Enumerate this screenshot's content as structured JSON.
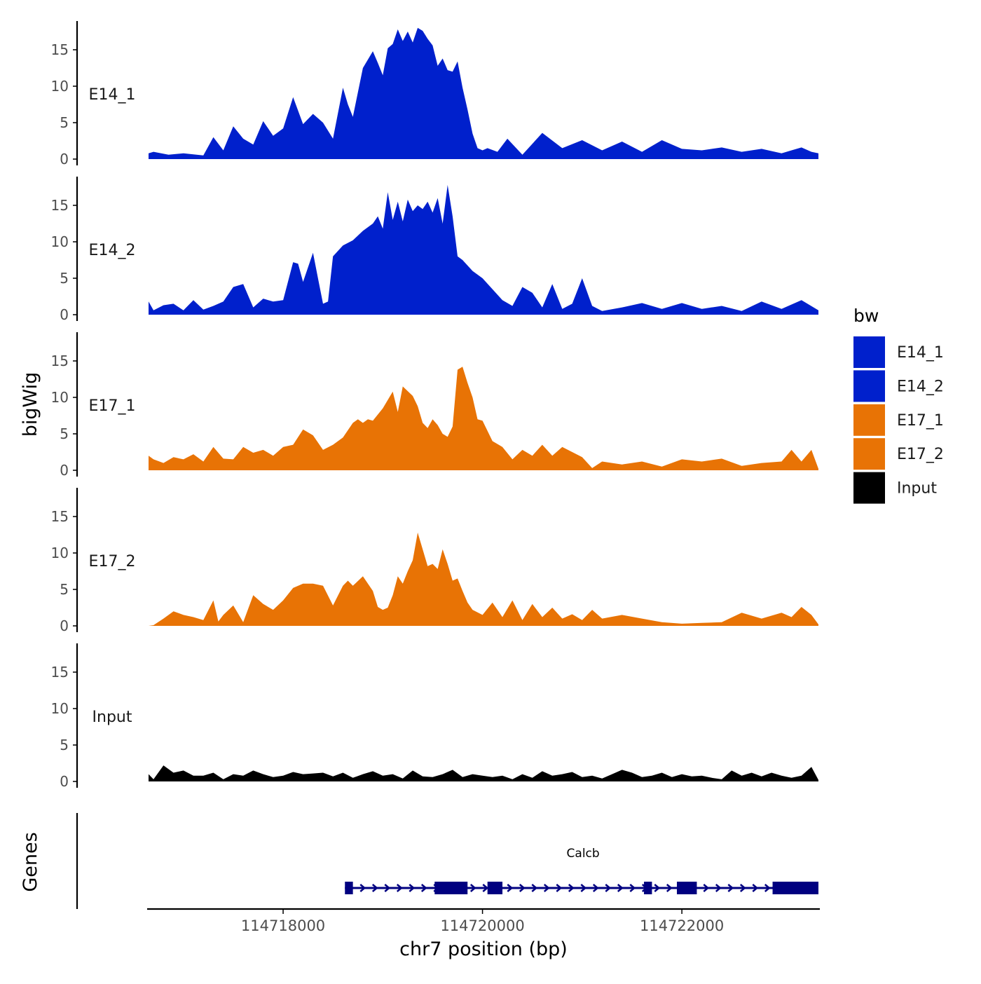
{
  "chart_data": {
    "type": "area",
    "title": "",
    "ylabel": "bigWig",
    "xlabel": "chr7 position (bp)",
    "genes_label": "Genes",
    "xlim": [
      114716650,
      114723370
    ],
    "ylim": [
      0,
      18
    ],
    "y_ticks": [
      "0",
      "5",
      "10",
      "15"
    ],
    "y_tick_values": [
      0,
      5,
      10,
      15
    ],
    "x_ticks": [
      "114718000",
      "114720000",
      "114722000"
    ],
    "x_tick_values": [
      114718000,
      114720000,
      114722000
    ],
    "legend": {
      "title": "bw",
      "position": "right",
      "items": [
        {
          "label": "E14_1",
          "color": "#0020CC"
        },
        {
          "label": "E14_2",
          "color": "#0020CC"
        },
        {
          "label": "E17_1",
          "color": "#E87305"
        },
        {
          "label": "E17_2",
          "color": "#E87305"
        },
        {
          "label": "Input",
          "color": "#000000"
        }
      ]
    },
    "series": [
      {
        "name": "E14_1",
        "color": "#0020CC",
        "x": [
          114716650,
          114716700,
          114716850,
          114717000,
          114717200,
          114717300,
          114717400,
          114717500,
          114717600,
          114717700,
          114717800,
          114717900,
          114718000,
          114718100,
          114718200,
          114718300,
          114718400,
          114718500,
          114718600,
          114718650,
          114718700,
          114718800,
          114718900,
          114718950,
          114719000,
          114719050,
          114719100,
          114719150,
          114719200,
          114719250,
          114719300,
          114719350,
          114719400,
          114719450,
          114719500,
          114719550,
          114719600,
          114719650,
          114719700,
          114719750,
          114719800,
          114719850,
          114719900,
          114719950,
          114720000,
          114720050,
          114720150,
          114720250,
          114720400,
          114720600,
          114720800,
          114721000,
          114721200,
          114721400,
          114721600,
          114721800,
          114722000,
          114722200,
          114722400,
          114722600,
          114722800,
          114723000,
          114723100,
          114723200,
          114723300,
          114723370
        ],
        "values": [
          0.8,
          1.0,
          0.6,
          0.8,
          0.5,
          3.0,
          1.2,
          4.5,
          2.8,
          2.0,
          5.2,
          3.2,
          4.2,
          8.5,
          4.8,
          6.2,
          5.0,
          2.8,
          9.8,
          7.5,
          5.8,
          12.5,
          14.8,
          13.2,
          11.5,
          15.2,
          15.8,
          17.8,
          16.2,
          17.5,
          16.0,
          18.0,
          17.6,
          16.5,
          15.6,
          12.8,
          13.8,
          12.2,
          12.0,
          13.4,
          9.8,
          6.8,
          3.5,
          1.5,
          1.2,
          1.5,
          1.0,
          2.8,
          0.6,
          3.6,
          1.5,
          2.6,
          1.2,
          2.4,
          1.0,
          2.6,
          1.4,
          1.2,
          1.6,
          1.0,
          1.4,
          0.8,
          1.2,
          1.6,
          1.0,
          0.8
        ]
      },
      {
        "name": "E14_2",
        "color": "#0020CC",
        "x": [
          114716650,
          114716700,
          114716800,
          114716900,
          114717000,
          114717100,
          114717200,
          114717300,
          114717400,
          114717500,
          114717600,
          114717700,
          114717800,
          114717900,
          114718000,
          114718100,
          114718150,
          114718200,
          114718300,
          114718350,
          114718400,
          114718450,
          114718500,
          114718600,
          114718700,
          114718800,
          114718900,
          114718950,
          114719000,
          114719050,
          114719100,
          114719150,
          114719200,
          114719250,
          114719300,
          114719350,
          114719400,
          114719450,
          114719500,
          114719550,
          114719600,
          114719650,
          114719700,
          114719750,
          114719800,
          114719900,
          114720000,
          114720100,
          114720200,
          114720300,
          114720400,
          114720500,
          114720600,
          114720700,
          114720800,
          114720900,
          114721000,
          114721100,
          114721200,
          114721400,
          114721600,
          114721800,
          114722000,
          114722200,
          114722400,
          114722600,
          114722800,
          114723000,
          114723200,
          114723370
        ],
        "values": [
          1.8,
          0.6,
          1.3,
          1.5,
          0.6,
          2.0,
          0.7,
          1.2,
          1.8,
          3.8,
          4.2,
          1.0,
          2.2,
          1.8,
          2.0,
          7.2,
          7.0,
          4.5,
          8.5,
          5.0,
          1.5,
          1.8,
          8.0,
          9.5,
          10.2,
          11.5,
          12.5,
          13.5,
          11.8,
          16.8,
          13.0,
          15.5,
          12.8,
          15.8,
          14.2,
          15.0,
          14.5,
          15.5,
          14.0,
          16.0,
          12.5,
          17.8,
          13.5,
          8.0,
          7.5,
          6.0,
          5.0,
          3.5,
          2.0,
          1.2,
          3.8,
          3.0,
          1.0,
          4.2,
          0.8,
          1.5,
          5.0,
          1.2,
          0.5,
          1.0,
          1.6,
          0.8,
          1.6,
          0.8,
          1.2,
          0.5,
          1.8,
          0.8,
          2.0,
          0.6
        ]
      },
      {
        "name": "E17_1",
        "color": "#E87305",
        "x": [
          114716650,
          114716700,
          114716800,
          114716900,
          114717000,
          114717100,
          114717200,
          114717300,
          114717400,
          114717500,
          114717600,
          114717700,
          114717800,
          114717900,
          114718000,
          114718100,
          114718200,
          114718300,
          114718400,
          114718500,
          114718600,
          114718700,
          114718750,
          114718800,
          114718850,
          114718900,
          114719000,
          114719100,
          114719150,
          114719200,
          114719300,
          114719350,
          114719400,
          114719450,
          114719500,
          114719550,
          114719600,
          114719650,
          114719700,
          114719750,
          114719800,
          114719850,
          114719900,
          114719950,
          114720000,
          114720100,
          114720200,
          114720300,
          114720400,
          114720500,
          114720600,
          114720700,
          114720800,
          114720900,
          114721000,
          114721100,
          114721200,
          114721400,
          114721600,
          114721800,
          114722000,
          114722200,
          114722400,
          114722600,
          114722800,
          114723000,
          114723100,
          114723200,
          114723300,
          114723370
        ],
        "values": [
          2.0,
          1.5,
          1.0,
          1.8,
          1.5,
          2.2,
          1.2,
          3.2,
          1.6,
          1.5,
          3.2,
          2.4,
          2.8,
          2.0,
          3.2,
          3.5,
          5.6,
          4.8,
          2.8,
          3.5,
          4.5,
          6.5,
          7.0,
          6.5,
          7.0,
          6.8,
          8.5,
          10.8,
          8.0,
          11.5,
          10.2,
          8.8,
          6.5,
          5.8,
          7.0,
          6.2,
          5.0,
          4.6,
          6.0,
          13.8,
          14.2,
          12.0,
          10.0,
          7.0,
          6.8,
          4.0,
          3.2,
          1.5,
          2.8,
          2.0,
          3.5,
          2.0,
          3.2,
          2.5,
          1.8,
          0.3,
          1.2,
          0.8,
          1.2,
          0.5,
          1.5,
          1.2,
          1.6,
          0.6,
          1.0,
          1.2,
          2.8,
          1.2,
          2.8,
          0.2
        ]
      },
      {
        "name": "E17_2",
        "color": "#E87305",
        "x": [
          114716650,
          114716700,
          114716800,
          114716900,
          114717000,
          114717100,
          114717200,
          114717300,
          114717350,
          114717400,
          114717500,
          114717600,
          114717700,
          114717800,
          114717900,
          114718000,
          114718100,
          114718200,
          114718300,
          114718400,
          114718500,
          114718600,
          114718650,
          114718700,
          114718800,
          114718900,
          114718950,
          114719000,
          114719050,
          114719100,
          114719150,
          114719200,
          114719250,
          114719300,
          114719350,
          114719400,
          114719450,
          114719500,
          114719550,
          114719600,
          114719650,
          114719700,
          114719750,
          114719800,
          114719850,
          114719900,
          114720000,
          114720100,
          114720200,
          114720300,
          114720400,
          114720500,
          114720600,
          114720700,
          114720800,
          114720900,
          114721000,
          114721100,
          114721200,
          114721400,
          114721600,
          114721800,
          114722000,
          114722200,
          114722400,
          114722600,
          114722800,
          114723000,
          114723100,
          114723200,
          114723300,
          114723370
        ],
        "values": [
          0.0,
          0.1,
          1.0,
          2.0,
          1.5,
          1.2,
          0.8,
          3.5,
          0.6,
          1.5,
          2.8,
          0.5,
          4.2,
          3.0,
          2.2,
          3.5,
          5.2,
          5.8,
          5.8,
          5.5,
          2.8,
          5.5,
          6.2,
          5.5,
          6.8,
          4.8,
          2.6,
          2.2,
          2.5,
          4.2,
          6.8,
          5.8,
          7.5,
          9.0,
          12.8,
          10.5,
          8.2,
          8.5,
          7.8,
          10.5,
          8.5,
          6.2,
          6.5,
          4.8,
          3.2,
          2.2,
          1.5,
          3.2,
          1.2,
          3.5,
          0.8,
          3.0,
          1.2,
          2.5,
          1.0,
          1.6,
          0.8,
          2.2,
          1.0,
          1.5,
          1.0,
          0.5,
          0.3,
          0.4,
          0.5,
          1.8,
          1.0,
          1.8,
          1.2,
          2.6,
          1.5,
          0.2
        ]
      },
      {
        "name": "Input",
        "color": "#000000",
        "x": [
          114716650,
          114716700,
          114716800,
          114716900,
          114717000,
          114717100,
          114717200,
          114717300,
          114717400,
          114717500,
          114717600,
          114717700,
          114717800,
          114717900,
          114718000,
          114718100,
          114718200,
          114718300,
          114718400,
          114718500,
          114718600,
          114718700,
          114718800,
          114718900,
          114719000,
          114719100,
          114719200,
          114719300,
          114719400,
          114719500,
          114719600,
          114719700,
          114719800,
          114719900,
          114720000,
          114720100,
          114720200,
          114720300,
          114720400,
          114720500,
          114720600,
          114720700,
          114720800,
          114720900,
          114721000,
          114721100,
          114721200,
          114721300,
          114721400,
          114721500,
          114721600,
          114721700,
          114721800,
          114721900,
          114722000,
          114722100,
          114722200,
          114722300,
          114722400,
          114722500,
          114722600,
          114722700,
          114722800,
          114722900,
          114723000,
          114723100,
          114723200,
          114723300,
          114723370
        ],
        "values": [
          1.0,
          0.3,
          2.2,
          1.2,
          1.5,
          0.8,
          0.8,
          1.2,
          0.3,
          1.0,
          0.8,
          1.5,
          1.0,
          0.6,
          0.8,
          1.3,
          1.0,
          1.1,
          1.2,
          0.7,
          1.2,
          0.5,
          1.0,
          1.4,
          0.8,
          1.0,
          0.4,
          1.5,
          0.7,
          0.6,
          1.0,
          1.6,
          0.6,
          1.0,
          0.8,
          0.6,
          0.8,
          0.3,
          1.0,
          0.5,
          1.4,
          0.8,
          1.0,
          1.3,
          0.6,
          0.8,
          0.4,
          1.0,
          1.6,
          1.2,
          0.6,
          0.8,
          1.2,
          0.6,
          1.0,
          0.7,
          0.8,
          0.5,
          0.3,
          1.5,
          0.8,
          1.2,
          0.7,
          1.2,
          0.8,
          0.5,
          0.8,
          2.0,
          0.2
        ]
      }
    ],
    "genes": [
      {
        "name": "Calcb",
        "color": "#000080",
        "strand": "+",
        "start": 114718620,
        "end": 114723370,
        "exons": [
          [
            114718620,
            114718700
          ],
          [
            114719520,
            114719850
          ],
          [
            114720050,
            114720200
          ],
          [
            114721620,
            114721700
          ],
          [
            114721950,
            114722150
          ],
          [
            114722910,
            114723370
          ]
        ]
      }
    ]
  }
}
